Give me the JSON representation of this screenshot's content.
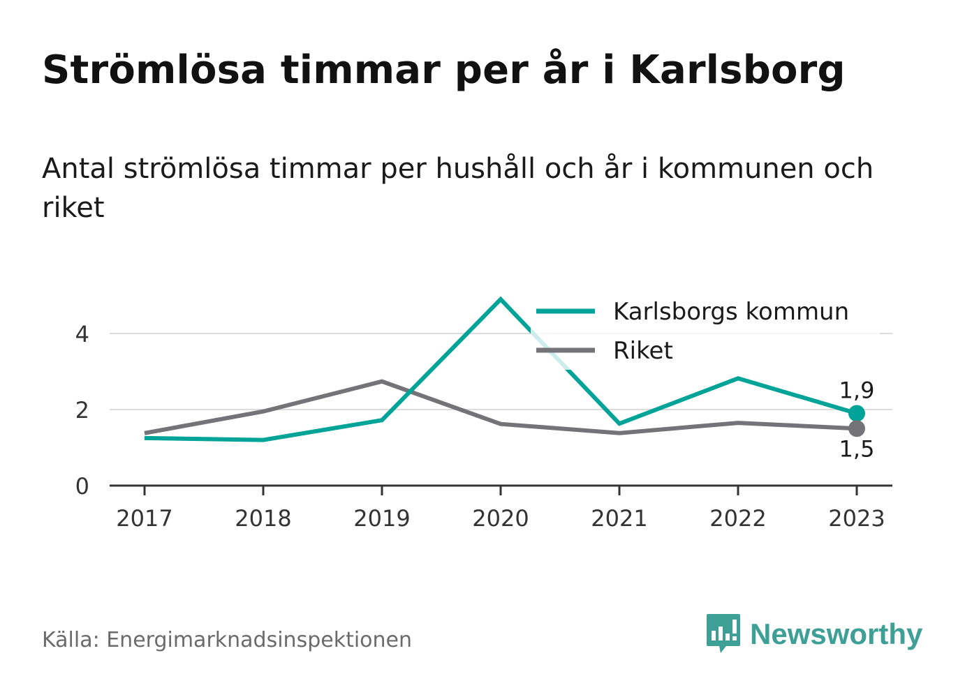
{
  "title": "Strömlösa timmar per år i Karlsborg",
  "subtitle": "Antal strömlösa timmar per hushåll och år i kommunen och riket",
  "source": "Källa: Energimarknadsinspektionen",
  "brand": {
    "name": "Newsworthy",
    "icon": "newsworthy-logo-icon",
    "color": "#3d9f95"
  },
  "chart_data": {
    "type": "line",
    "categories": [
      "2017",
      "2018",
      "2019",
      "2020",
      "2021",
      "2022",
      "2023"
    ],
    "ylim": [
      0,
      5
    ],
    "yticks": [
      0,
      2,
      4
    ],
    "grid": true,
    "legend": "top-right",
    "series": [
      {
        "name": "Karlsborgs kommun",
        "color": "#00a398",
        "values": [
          1.25,
          1.2,
          1.72,
          4.9,
          1.63,
          2.82,
          1.9
        ],
        "end_label": "1,9"
      },
      {
        "name": "Riket",
        "color": "#737378",
        "values": [
          1.38,
          1.95,
          2.74,
          1.62,
          1.38,
          1.65,
          1.5
        ],
        "end_label": "1,5"
      }
    ]
  }
}
